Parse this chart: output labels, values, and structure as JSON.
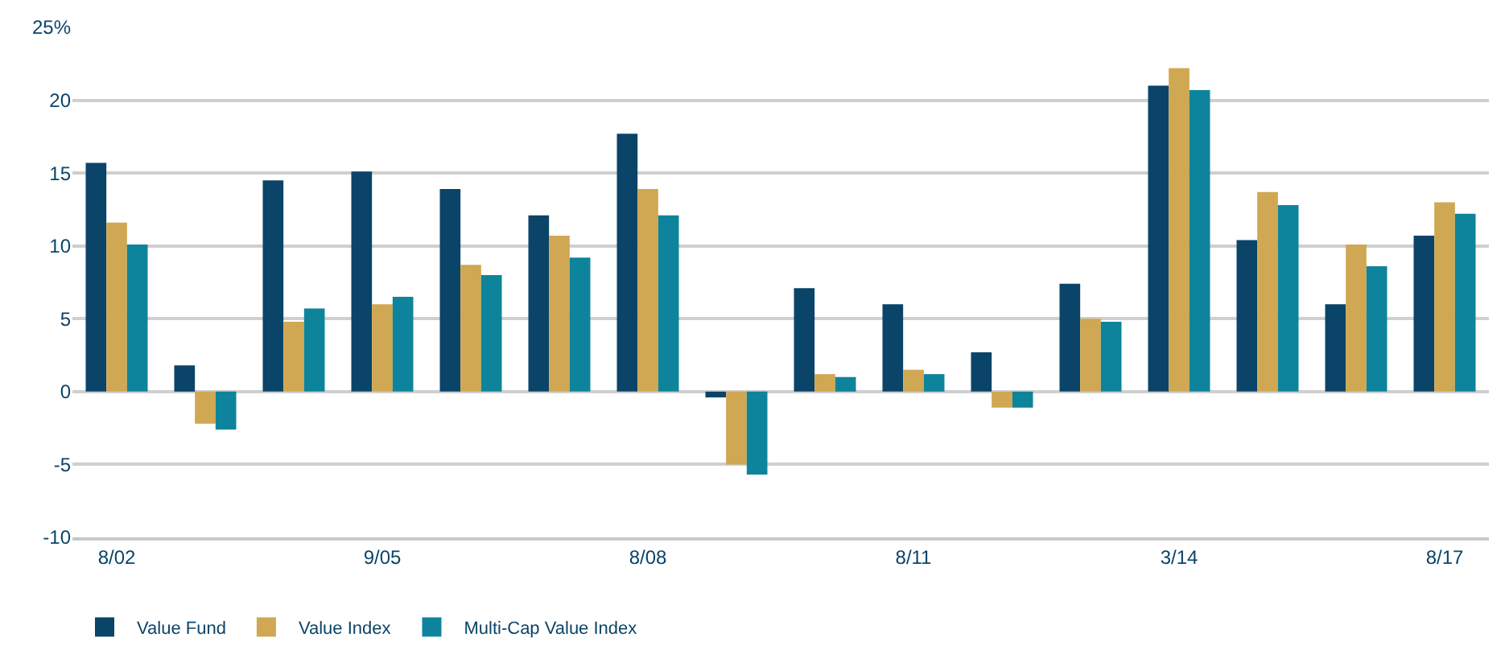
{
  "chart_data": {
    "type": "bar",
    "categories": [
      "8/02",
      null,
      null,
      "9/05",
      null,
      null,
      "8/08",
      null,
      null,
      "8/11",
      null,
      null,
      "3/14",
      null,
      null,
      "8/17"
    ],
    "series": [
      {
        "name": "Value Fund",
        "color": "#0a4468",
        "values": [
          15.7,
          1.8,
          14.5,
          15.1,
          13.9,
          12.1,
          17.7,
          -0.4,
          7.1,
          6.0,
          2.7,
          7.4,
          21.0,
          10.4,
          6.0,
          10.7
        ]
      },
      {
        "name": "Value Index",
        "color": "#d0a752",
        "values": [
          11.6,
          -2.2,
          4.8,
          6.0,
          8.7,
          10.7,
          13.9,
          -5.0,
          1.2,
          1.5,
          -1.1,
          5.0,
          22.2,
          13.7,
          10.1,
          13.0
        ]
      },
      {
        "name": "Multi-Cap Value Index",
        "color": "#0e849c",
        "values": [
          10.1,
          -2.6,
          5.7,
          6.5,
          8.0,
          9.2,
          12.1,
          -5.7,
          1.0,
          1.2,
          -1.1,
          4.8,
          20.7,
          12.8,
          8.6,
          12.2
        ]
      }
    ],
    "ylim": [
      -10,
      25
    ],
    "yticks": [
      -10,
      -5,
      0,
      5,
      10,
      15,
      20,
      {
        "value": 25,
        "label": "25%"
      }
    ],
    "grid": "y",
    "legend": "bottom left"
  }
}
